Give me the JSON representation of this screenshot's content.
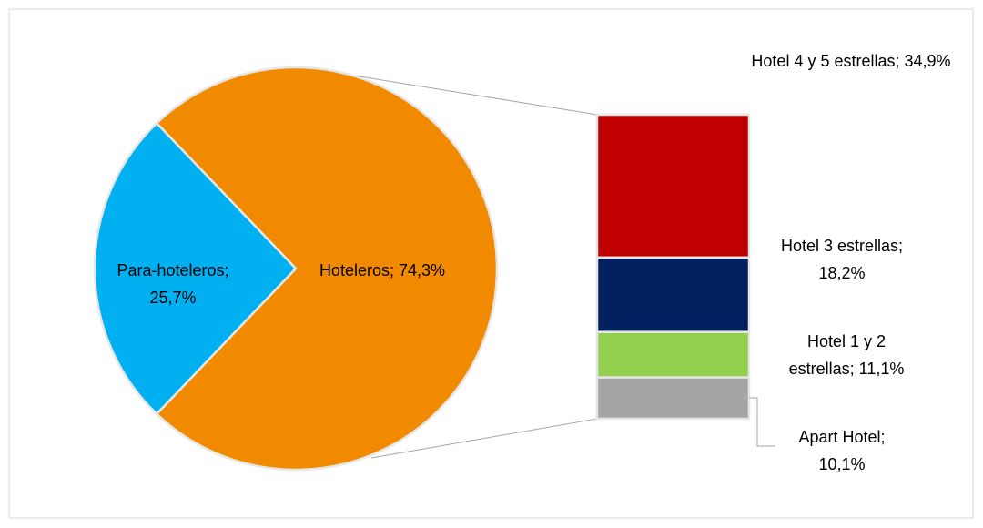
{
  "chart_data": {
    "type": "pie-of-bar",
    "pie": {
      "categories": [
        "Hoteleros;",
        "Para-hoteleros;"
      ],
      "values": [
        74.3,
        25.7
      ],
      "value_labels": [
        "74,3%",
        "25,7%"
      ],
      "colors": [
        "#f28a00",
        "#00b0f0"
      ]
    },
    "bar": {
      "categories": [
        "Hotel 4 y 5 estrellas;",
        "Hotel 3 estrellas;",
        "Hotel 1 y 2 estrellas;",
        "Apart Hotel;"
      ],
      "values": [
        34.9,
        18.2,
        11.1,
        10.1
      ],
      "value_labels": [
        "34,9%",
        "18,2%",
        "11,1%",
        "10,1%"
      ],
      "colors": [
        "#c00000",
        "#002060",
        "#92d050",
        "#a5a5a5"
      ]
    }
  }
}
